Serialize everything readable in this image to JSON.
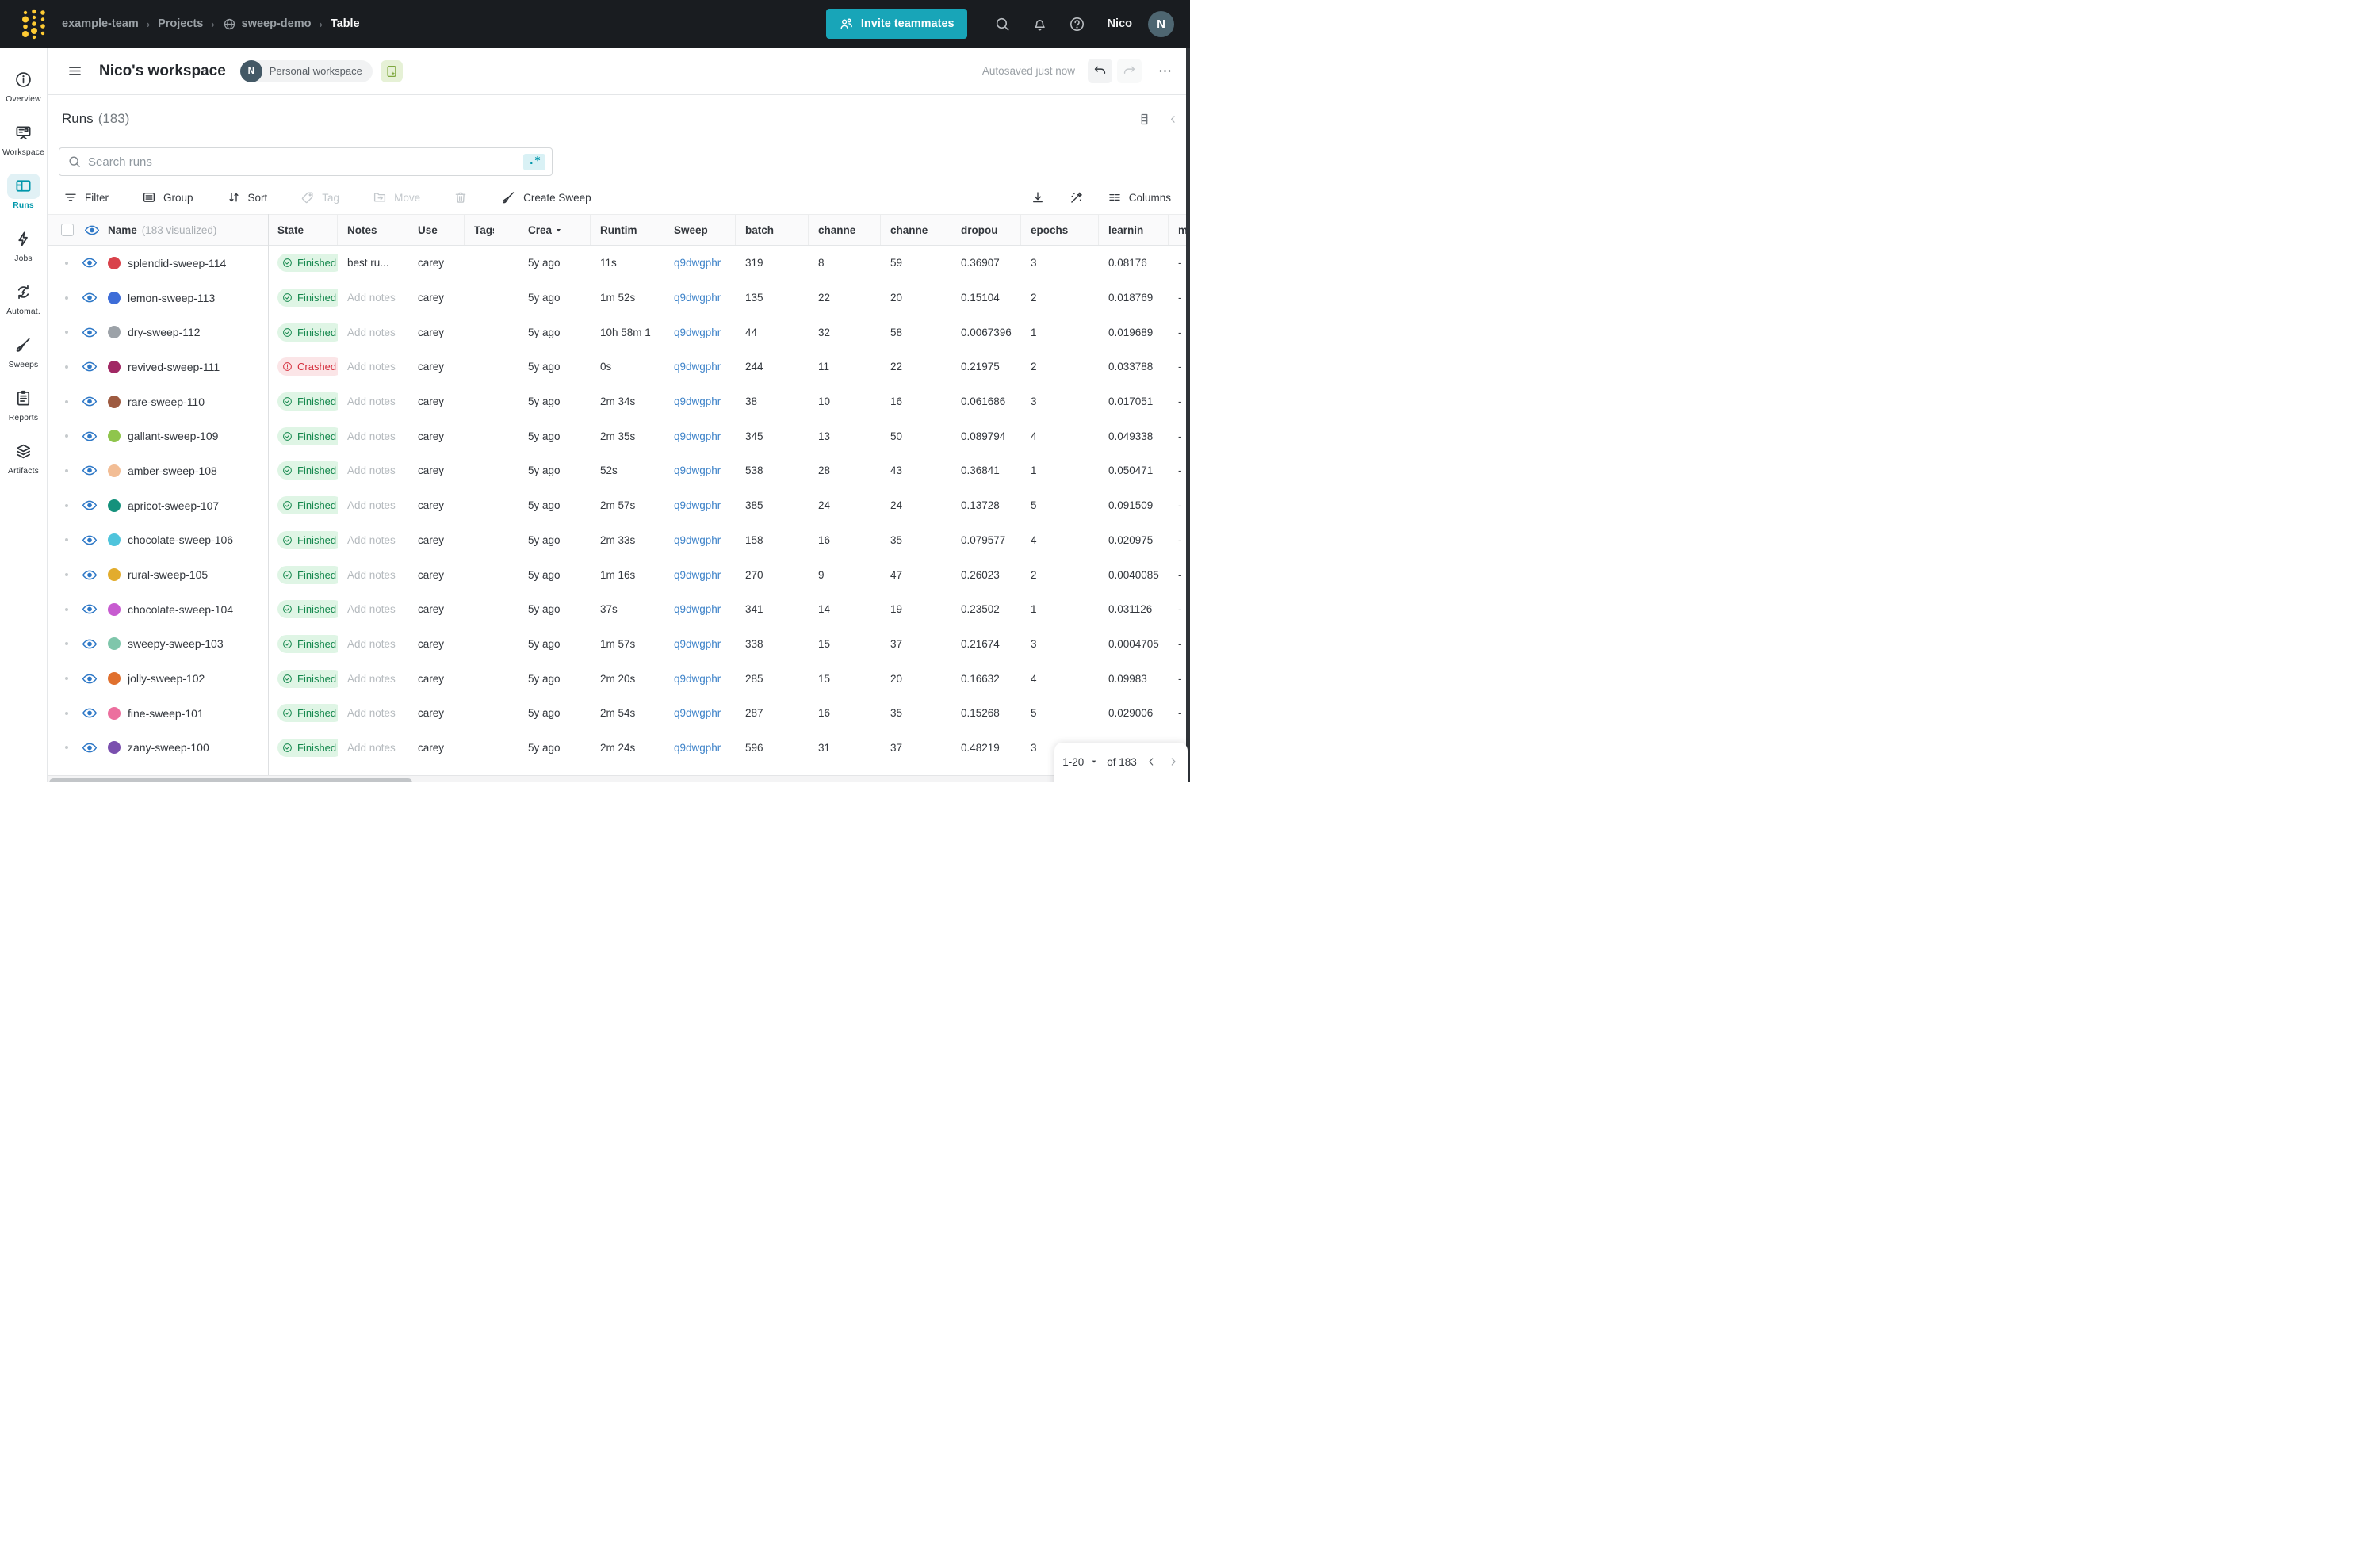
{
  "colors": {
    "accent_teal": "#18A5B8",
    "link_blue": "#3E83C9",
    "finished_green": "#13874C",
    "crashed_red": "#D5303E"
  },
  "navbar": {
    "breadcrumb_team": "example-team",
    "breadcrumb_projects": "Projects",
    "breadcrumb_project": "sweep-demo",
    "breadcrumb_page": "Table",
    "invite_label": "Invite teammates",
    "user_name": "Nico",
    "avatar_initial": "N"
  },
  "sidebar": {
    "items": [
      {
        "label": "Overview",
        "icon": "info-icon"
      },
      {
        "label": "Workspace",
        "icon": "board-icon"
      },
      {
        "label": "Runs",
        "icon": "table-icon",
        "active": true
      },
      {
        "label": "Jobs",
        "icon": "bolt-icon"
      },
      {
        "label": "Automat.",
        "icon": "automation-icon"
      },
      {
        "label": "Sweeps",
        "icon": "broom-icon"
      },
      {
        "label": "Reports",
        "icon": "report-icon"
      },
      {
        "label": "Artifacts",
        "icon": "layers-icon"
      }
    ]
  },
  "workspace_header": {
    "title": "Nico's workspace",
    "avatar_initial": "N",
    "workspace_badge": "Personal workspace",
    "autosave_status": "Autosaved just now"
  },
  "runs_panel": {
    "title": "Runs",
    "count": "(183)",
    "search_placeholder": "Search runs",
    "regex_toggle": ".*",
    "toolbar": {
      "filter": "Filter",
      "group": "Group",
      "sort": "Sort",
      "tag": "Tag",
      "move": "Move",
      "create_sweep": "Create Sweep",
      "columns": "Columns"
    },
    "table": {
      "name_header": "Name",
      "visualized_label": "(183 visualized)",
      "columns": [
        {
          "label": "State"
        },
        {
          "label": "Notes"
        },
        {
          "label": "Use"
        },
        {
          "label": "Tags"
        },
        {
          "label": "Crea",
          "sort": true
        },
        {
          "label": "Runtim"
        },
        {
          "label": "Sweep"
        },
        {
          "label": "batch_"
        },
        {
          "label": "channe"
        },
        {
          "label": "channe"
        },
        {
          "label": "dropou"
        },
        {
          "label": "epochs"
        },
        {
          "label": "learnin"
        },
        {
          "label": "me"
        }
      ],
      "rows": [
        {
          "name": "splendid-sweep-114",
          "color": "#D9424B",
          "state": "Finished",
          "notes": "best ru...",
          "notes_is_placeholder": false,
          "user": "carey",
          "created": "5y ago",
          "runtime": "11s",
          "sweep": "q9dwgphr",
          "batch_size": "319",
          "channels_one": "8",
          "channels_two": "59",
          "dropout": "0.36907",
          "epochs": "3",
          "learning_rate": "0.08176",
          "metric": "-"
        },
        {
          "name": "lemon-sweep-113",
          "color": "#3D6DD8",
          "state": "Finished",
          "notes": "Add notes",
          "notes_is_placeholder": true,
          "user": "carey",
          "created": "5y ago",
          "runtime": "1m 52s",
          "sweep": "q9dwgphr",
          "batch_size": "135",
          "channels_one": "22",
          "channels_two": "20",
          "dropout": "0.15104",
          "epochs": "2",
          "learning_rate": "0.018769",
          "metric": "-"
        },
        {
          "name": "dry-sweep-112",
          "color": "#9CA2A8",
          "state": "Finished",
          "notes": "Add notes",
          "notes_is_placeholder": true,
          "user": "carey",
          "created": "5y ago",
          "runtime": "10h 58m 1",
          "sweep": "q9dwgphr",
          "batch_size": "44",
          "channels_one": "32",
          "channels_two": "58",
          "dropout": "0.0067396",
          "epochs": "1",
          "learning_rate": "0.019689",
          "metric": "-"
        },
        {
          "name": "revived-sweep-111",
          "color": "#A12864",
          "state": "Crashed",
          "notes": "Add notes",
          "notes_is_placeholder": true,
          "user": "carey",
          "created": "5y ago",
          "runtime": "0s",
          "sweep": "q9dwgphr",
          "batch_size": "244",
          "channels_one": "11",
          "channels_two": "22",
          "dropout": "0.21975",
          "epochs": "2",
          "learning_rate": "0.033788",
          "metric": "-"
        },
        {
          "name": "rare-sweep-110",
          "color": "#9E5B41",
          "state": "Finished",
          "notes": "Add notes",
          "notes_is_placeholder": true,
          "user": "carey",
          "created": "5y ago",
          "runtime": "2m 34s",
          "sweep": "q9dwgphr",
          "batch_size": "38",
          "channels_one": "10",
          "channels_two": "16",
          "dropout": "0.061686",
          "epochs": "3",
          "learning_rate": "0.017051",
          "metric": "-"
        },
        {
          "name": "gallant-sweep-109",
          "color": "#8FC54C",
          "state": "Finished",
          "notes": "Add notes",
          "notes_is_placeholder": true,
          "user": "carey",
          "created": "5y ago",
          "runtime": "2m 35s",
          "sweep": "q9dwgphr",
          "batch_size": "345",
          "channels_one": "13",
          "channels_two": "50",
          "dropout": "0.089794",
          "epochs": "4",
          "learning_rate": "0.049338",
          "metric": "-"
        },
        {
          "name": "amber-sweep-108",
          "color": "#F2BD95",
          "state": "Finished",
          "notes": "Add notes",
          "notes_is_placeholder": true,
          "user": "carey",
          "created": "5y ago",
          "runtime": "52s",
          "sweep": "q9dwgphr",
          "batch_size": "538",
          "channels_one": "28",
          "channels_two": "43",
          "dropout": "0.36841",
          "epochs": "1",
          "learning_rate": "0.050471",
          "metric": "-"
        },
        {
          "name": "apricot-sweep-107",
          "color": "#15917C",
          "state": "Finished",
          "notes": "Add notes",
          "notes_is_placeholder": true,
          "user": "carey",
          "created": "5y ago",
          "runtime": "2m 57s",
          "sweep": "q9dwgphr",
          "batch_size": "385",
          "channels_one": "24",
          "channels_two": "24",
          "dropout": "0.13728",
          "epochs": "5",
          "learning_rate": "0.091509",
          "metric": "-"
        },
        {
          "name": "chocolate-sweep-106",
          "color": "#4FC4DC",
          "state": "Finished",
          "notes": "Add notes",
          "notes_is_placeholder": true,
          "user": "carey",
          "created": "5y ago",
          "runtime": "2m 33s",
          "sweep": "q9dwgphr",
          "batch_size": "158",
          "channels_one": "16",
          "channels_two": "35",
          "dropout": "0.079577",
          "epochs": "4",
          "learning_rate": "0.020975",
          "metric": "-"
        },
        {
          "name": "rural-sweep-105",
          "color": "#E2AC2D",
          "state": "Finished",
          "notes": "Add notes",
          "notes_is_placeholder": true,
          "user": "carey",
          "created": "5y ago",
          "runtime": "1m 16s",
          "sweep": "q9dwgphr",
          "batch_size": "270",
          "channels_one": "9",
          "channels_two": "47",
          "dropout": "0.26023",
          "epochs": "2",
          "learning_rate": "0.0040085",
          "metric": "-"
        },
        {
          "name": "chocolate-sweep-104",
          "color": "#C75BD0",
          "state": "Finished",
          "notes": "Add notes",
          "notes_is_placeholder": true,
          "user": "carey",
          "created": "5y ago",
          "runtime": "37s",
          "sweep": "q9dwgphr",
          "batch_size": "341",
          "channels_one": "14",
          "channels_two": "19",
          "dropout": "0.23502",
          "epochs": "1",
          "learning_rate": "0.031126",
          "metric": "-"
        },
        {
          "name": "sweepy-sweep-103",
          "color": "#7FC6AB",
          "state": "Finished",
          "notes": "Add notes",
          "notes_is_placeholder": true,
          "user": "carey",
          "created": "5y ago",
          "runtime": "1m 57s",
          "sweep": "q9dwgphr",
          "batch_size": "338",
          "channels_one": "15",
          "channels_two": "37",
          "dropout": "0.21674",
          "epochs": "3",
          "learning_rate": "0.0004705",
          "metric": "-"
        },
        {
          "name": "jolly-sweep-102",
          "color": "#E0702E",
          "state": "Finished",
          "notes": "Add notes",
          "notes_is_placeholder": true,
          "user": "carey",
          "created": "5y ago",
          "runtime": "2m 20s",
          "sweep": "q9dwgphr",
          "batch_size": "285",
          "channels_one": "15",
          "channels_two": "20",
          "dropout": "0.16632",
          "epochs": "4",
          "learning_rate": "0.09983",
          "metric": "-"
        },
        {
          "name": "fine-sweep-101",
          "color": "#EC6F9E",
          "state": "Finished",
          "notes": "Add notes",
          "notes_is_placeholder": true,
          "user": "carey",
          "created": "5y ago",
          "runtime": "2m 54s",
          "sweep": "q9dwgphr",
          "batch_size": "287",
          "channels_one": "16",
          "channels_two": "35",
          "dropout": "0.15268",
          "epochs": "5",
          "learning_rate": "0.029006",
          "metric": "-"
        },
        {
          "name": "zany-sweep-100",
          "color": "#7A4FAE",
          "state": "Finished",
          "notes": "Add notes",
          "notes_is_placeholder": true,
          "user": "carey",
          "created": "5y ago",
          "runtime": "2m 24s",
          "sweep": "q9dwgphr",
          "batch_size": "596",
          "channels_one": "31",
          "channels_two": "37",
          "dropout": "0.48219",
          "epochs": "3",
          "learning_rate": "",
          "metric": ""
        }
      ]
    },
    "pagination": {
      "range": "1-20",
      "total": "of 183"
    }
  }
}
